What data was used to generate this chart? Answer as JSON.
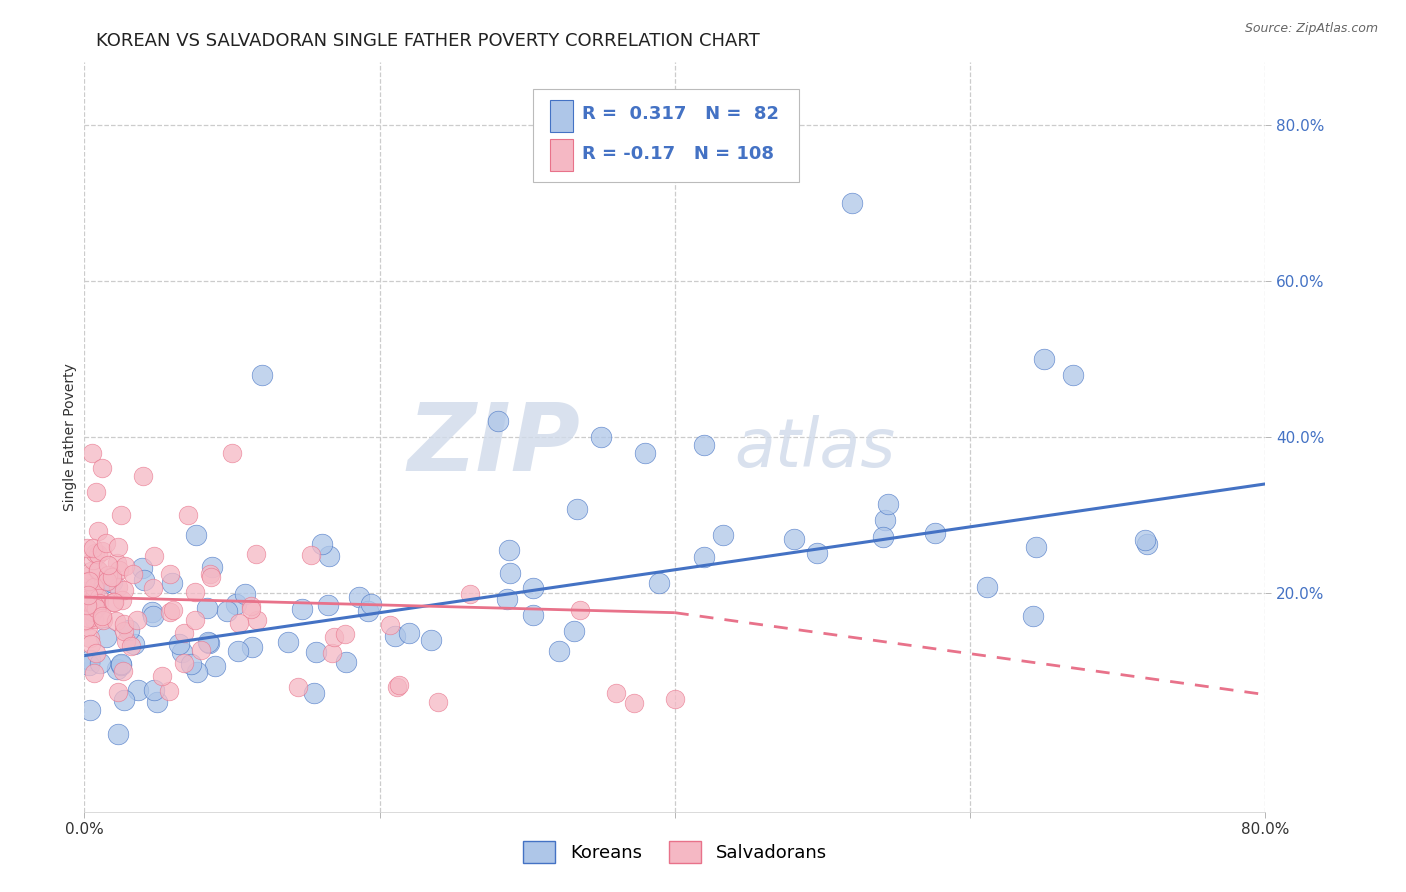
{
  "title": "KOREAN VS SALVADORAN SINGLE FATHER POVERTY CORRELATION CHART",
  "source": "Source: ZipAtlas.com",
  "ylabel": "Single Father Poverty",
  "xlim": [
    0.0,
    0.8
  ],
  "ylim": [
    -0.08,
    0.88
  ],
  "xtick_labels": [
    "0.0%",
    "",
    "",
    "",
    "80.0%"
  ],
  "xtick_vals": [
    0.0,
    0.2,
    0.4,
    0.6,
    0.8
  ],
  "ytick_labels": [
    "80.0%",
    "60.0%",
    "40.0%",
    "20.0%"
  ],
  "ytick_vals": [
    0.8,
    0.6,
    0.4,
    0.2
  ],
  "korean_color": "#4472c4",
  "korean_color_fill": "#aec6e8",
  "salvadoran_color": "#e8728a",
  "salvadoran_color_fill": "#f5b8c4",
  "korean_R": 0.317,
  "korean_N": 82,
  "salvadoran_R": -0.17,
  "salvadoran_N": 108,
  "legend_label_korean": "Koreans",
  "legend_label_salvadoran": "Salvadorans",
  "watermark_zip": "ZIP",
  "watermark_atlas": "atlas",
  "background_color": "#ffffff",
  "grid_color": "#cccccc",
  "title_fontsize": 13,
  "axis_label_fontsize": 10,
  "tick_fontsize": 11,
  "legend_fontsize": 13
}
